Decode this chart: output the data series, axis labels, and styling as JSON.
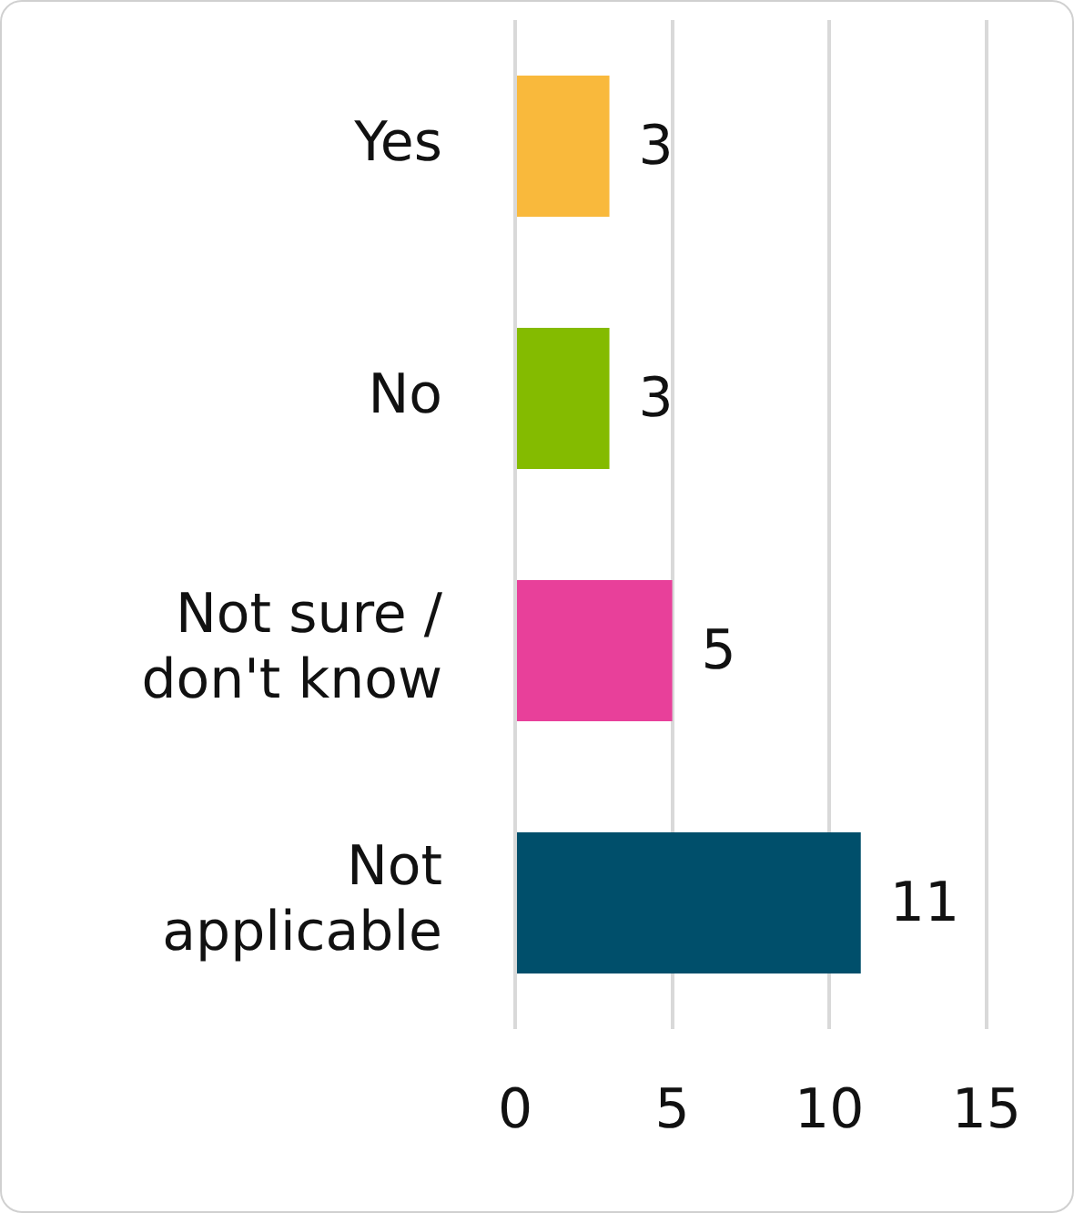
{
  "chart_data": {
    "type": "bar",
    "orientation": "horizontal",
    "categories": [
      "Yes",
      "No",
      "Not sure / don't know",
      "Not applicable"
    ],
    "values": [
      3,
      3,
      5,
      11
    ],
    "colors": [
      "#f9b93c",
      "#84bb00",
      "#e8409a",
      "#004f6b"
    ],
    "xlim": [
      0,
      15
    ],
    "xticks": [
      0,
      5,
      10,
      15
    ],
    "grid": "x",
    "data_labels": true,
    "legend": false
  }
}
